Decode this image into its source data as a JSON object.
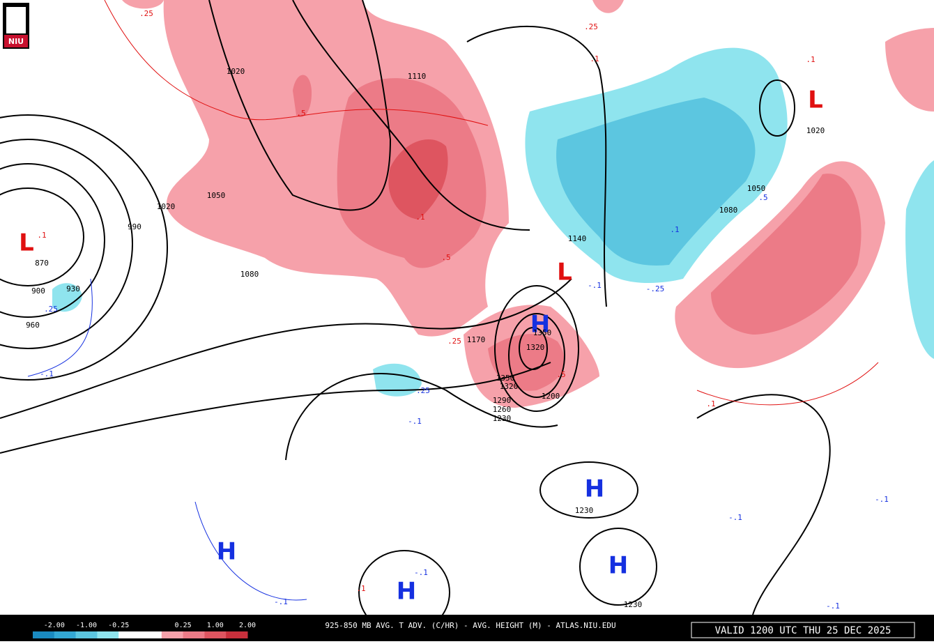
{
  "logo": "NIU",
  "lows": [
    "L",
    "L",
    "L"
  ],
  "highs": [
    "H",
    "H",
    "H",
    "H",
    "H"
  ],
  "height_labels": [
    "1020",
    "1110",
    "1020",
    "1050",
    "990",
    "870",
    "900",
    "930",
    "960",
    "1080",
    "1140",
    "1170",
    "1350",
    "1320",
    "1350",
    "1320",
    "1290",
    "1260",
    "1230",
    "1200",
    "1230",
    "1230",
    "1020",
    "1050",
    "1080"
  ],
  "advection_labels": [
    ".25",
    ".25",
    ".1",
    ".1",
    ".5",
    ".1",
    ".1",
    ".5",
    ".25",
    ".5",
    ".25",
    "-.1",
    ".25",
    "-.1",
    ".1",
    "-.1",
    "-.1",
    "-.1",
    "-.1",
    "-.1",
    ".1",
    ".5",
    "-.1",
    "-.25",
    ".1"
  ],
  "legend": {
    "labels": [
      "-2.00",
      "-1.00",
      "-0.25",
      "0.25",
      "1.00",
      "2.00"
    ],
    "colors": [
      "#1a8ac0",
      "#33a8d4",
      "#5cc6e0",
      "#8fe4ee",
      "#ffffff",
      "#ffffff",
      "#f6a1aa",
      "#ec7b87",
      "#de5560",
      "#c8303c"
    ]
  },
  "footer": {
    "title": "925-850 MB AVG. T ADV. (C/HR) - AVG. HEIGHT (M) - ATLAS.NIU.EDU",
    "valid": "VALID 1200 UTC THU 25 DEC 2025"
  }
}
